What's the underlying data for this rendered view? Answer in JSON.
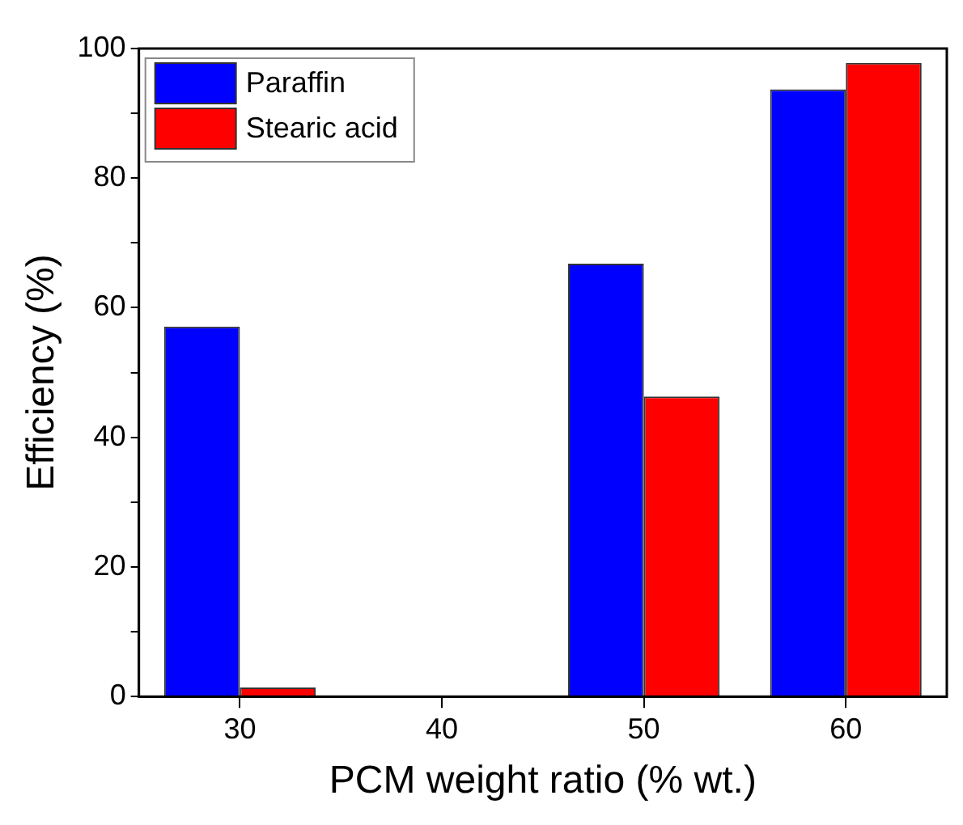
{
  "chart_data": {
    "type": "bar",
    "xlabel": "PCM weight ratio (% wt.)",
    "ylabel": "Efficiency (%)",
    "categories": [
      "30",
      "40",
      "50",
      "60"
    ],
    "series": [
      {
        "name": "Paraffin",
        "color": "#0000ff",
        "values": [
          57.1,
          null,
          66.8,
          93.7
        ]
      },
      {
        "name": "Stearic acid",
        "color": "#ff0000",
        "values": [
          1.4,
          null,
          46.3,
          97.8
        ]
      }
    ],
    "ylim": [
      0,
      100
    ],
    "yticks": [
      0,
      {
        "value": 10,
        "label": null
      },
      20,
      {
        "value": 30,
        "label": null
      },
      40,
      {
        "value": 50,
        "label": null
      },
      60,
      {
        "value": 70,
        "label": null
      },
      80,
      {
        "value": 90,
        "label": null
      },
      100
    ],
    "grid": false,
    "legend": "top left"
  }
}
